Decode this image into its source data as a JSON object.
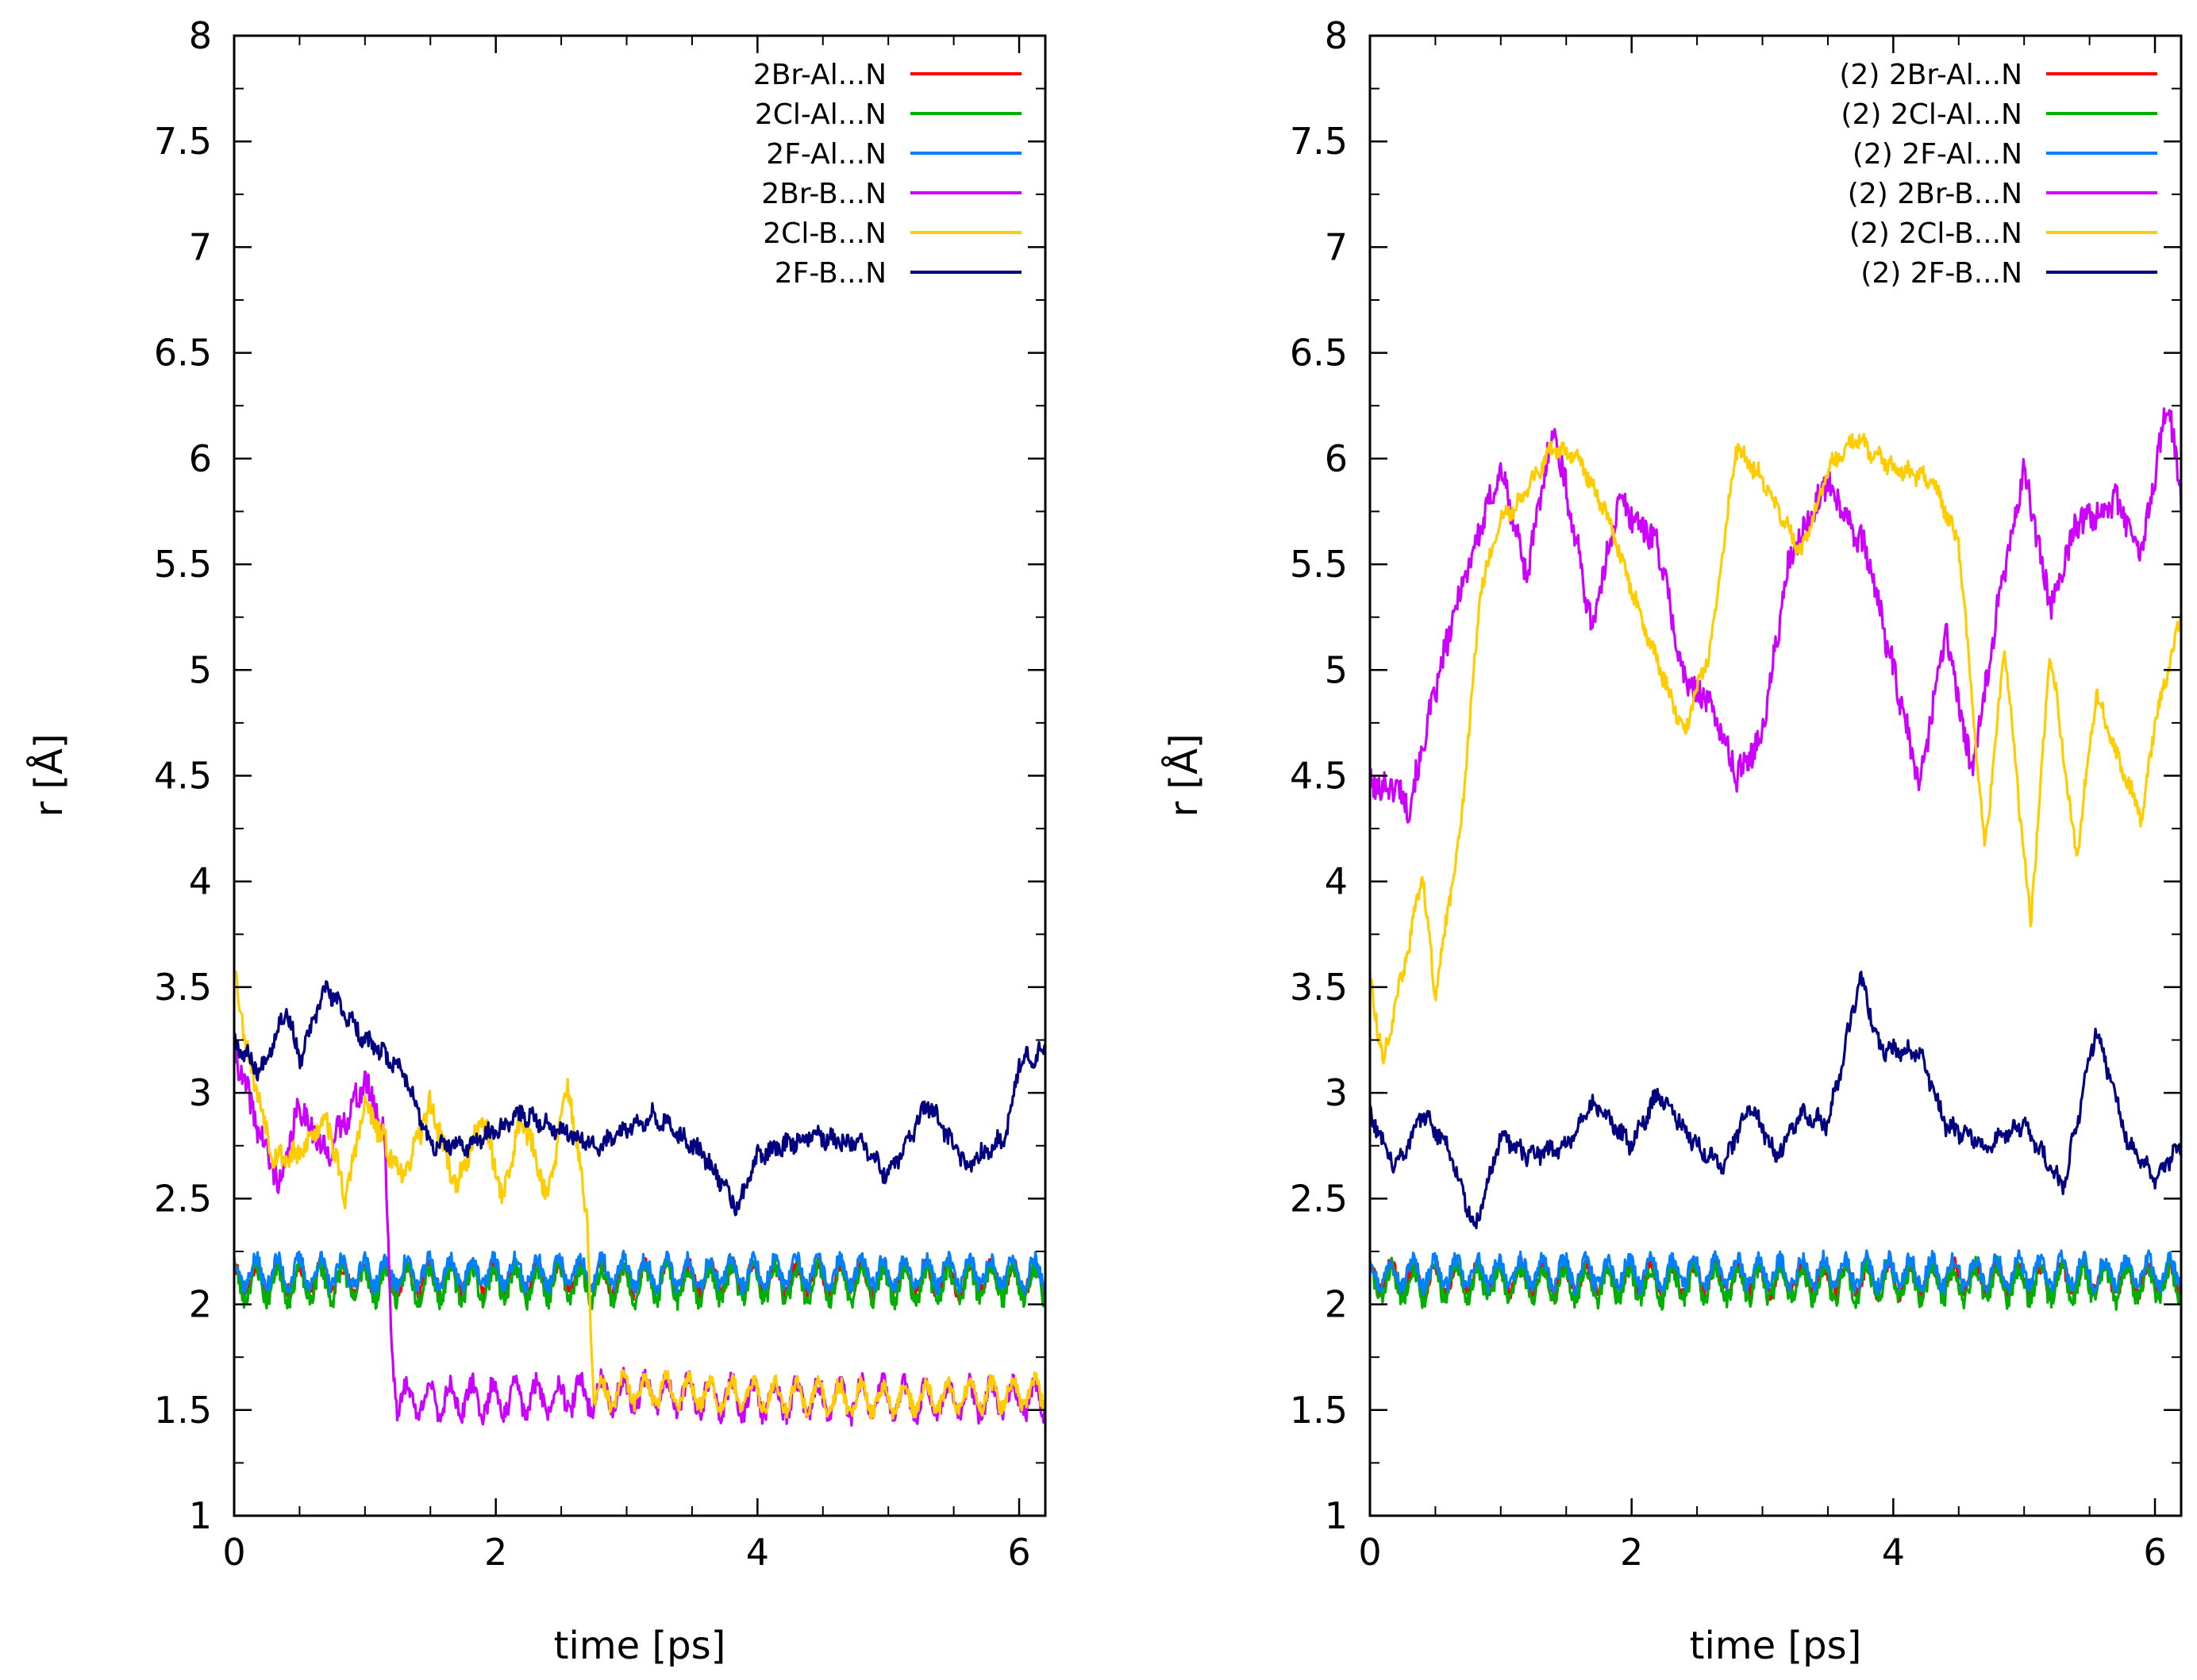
{
  "chart_data": [
    {
      "type": "line",
      "xlabel": "time [ps]",
      "ylabel": "r [Å]",
      "xlim": [
        0,
        6.2
      ],
      "ylim": [
        1,
        8
      ],
      "xticks": [
        "0",
        "2",
        "4",
        "6"
      ],
      "yticks": [
        "1",
        "1.5",
        "2",
        "2.5",
        "3",
        "3.5",
        "4",
        "4.5",
        "5",
        "5.5",
        "6",
        "6.5",
        "7",
        "7.5",
        "8"
      ],
      "legend_position": "top-right",
      "series": [
        {
          "name": "2Br-Al...N",
          "color": "#ff0000",
          "base": [
            [
              0,
              2.12
            ],
            [
              6.2,
              2.12
            ]
          ],
          "noise": 0.05,
          "seed": 11
        },
        {
          "name": "2Cl-Al...N",
          "color": "#00b000",
          "base": [
            [
              0,
              2.1
            ],
            [
              6.2,
              2.1
            ]
          ],
          "noise": 0.06,
          "seed": 23
        },
        {
          "name": "2F-Al...N",
          "color": "#0080ff",
          "base": [
            [
              0,
              2.15
            ],
            [
              6.2,
              2.15
            ]
          ],
          "noise": 0.05,
          "seed": 37
        },
        {
          "name": "2Br-B...N",
          "color": "#cc00ff",
          "base": [
            [
              0,
              3.2
            ],
            [
              0.2,
              2.8
            ],
            [
              0.35,
              2.55
            ],
            [
              0.5,
              2.95
            ],
            [
              0.7,
              2.7
            ],
            [
              1.0,
              3.05
            ],
            [
              1.15,
              2.8
            ],
            [
              1.2,
              1.85
            ],
            [
              1.25,
              1.55
            ],
            [
              2.0,
              1.55
            ],
            [
              3.0,
              1.58
            ],
            [
              4.0,
              1.55
            ],
            [
              6.2,
              1.55
            ]
          ],
          "noise": 0.06,
          "seed": 41
        },
        {
          "name": "2Cl-B...N",
          "color": "#ffcc00",
          "base": [
            [
              0,
              3.6
            ],
            [
              0.1,
              3.2
            ],
            [
              0.3,
              2.7
            ],
            [
              0.5,
              2.7
            ],
            [
              0.7,
              2.9
            ],
            [
              0.85,
              2.5
            ],
            [
              1.0,
              2.95
            ],
            [
              1.2,
              2.7
            ],
            [
              1.3,
              2.6
            ],
            [
              1.5,
              2.95
            ],
            [
              1.7,
              2.55
            ],
            [
              1.9,
              2.9
            ],
            [
              2.05,
              2.5
            ],
            [
              2.2,
              2.9
            ],
            [
              2.4,
              2.5
            ],
            [
              2.55,
              3.05
            ],
            [
              2.7,
              2.4
            ],
            [
              2.75,
              1.55
            ],
            [
              3.0,
              1.6
            ],
            [
              4.0,
              1.57
            ],
            [
              5.0,
              1.55
            ],
            [
              6.2,
              1.58
            ]
          ],
          "noise": 0.05,
          "seed": 53
        },
        {
          "name": "2F-B...N",
          "color": "#000080",
          "base": [
            [
              0,
              3.25
            ],
            [
              0.2,
              3.1
            ],
            [
              0.4,
              3.4
            ],
            [
              0.5,
              3.15
            ],
            [
              0.7,
              3.5
            ],
            [
              1.0,
              3.25
            ],
            [
              1.3,
              3.1
            ],
            [
              1.5,
              2.75
            ],
            [
              1.8,
              2.75
            ],
            [
              2.2,
              2.9
            ],
            [
              2.6,
              2.8
            ],
            [
              2.8,
              2.75
            ],
            [
              3.2,
              2.9
            ],
            [
              3.6,
              2.7
            ],
            [
              3.85,
              2.45
            ],
            [
              4.0,
              2.7
            ],
            [
              4.4,
              2.8
            ],
            [
              4.8,
              2.75
            ],
            [
              5.0,
              2.6
            ],
            [
              5.3,
              2.95
            ],
            [
              5.6,
              2.65
            ],
            [
              5.9,
              2.8
            ],
            [
              6.0,
              3.15
            ],
            [
              6.2,
              3.2
            ]
          ],
          "noise": 0.035,
          "seed": 67
        }
      ]
    },
    {
      "type": "line",
      "xlabel": "time [ps]",
      "ylabel": "r [Å]",
      "xlim": [
        0,
        6.2
      ],
      "ylim": [
        1,
        8
      ],
      "xticks": [
        "0",
        "2",
        "4",
        "6"
      ],
      "yticks": [
        "1",
        "1.5",
        "2",
        "2.5",
        "3",
        "3.5",
        "4",
        "4.5",
        "5",
        "5.5",
        "6",
        "6.5",
        "7",
        "7.5",
        "8"
      ],
      "legend_position": "top-right",
      "series": [
        {
          "name": "(2) 2Br-Al...N",
          "color": "#ff0000",
          "base": [
            [
              0,
              2.12
            ],
            [
              6.2,
              2.12
            ]
          ],
          "noise": 0.05,
          "seed": 71
        },
        {
          "name": "(2) 2Cl-Al...N",
          "color": "#00b000",
          "base": [
            [
              0,
              2.1
            ],
            [
              6.2,
              2.1
            ]
          ],
          "noise": 0.06,
          "seed": 83
        },
        {
          "name": "(2) 2F-Al...N",
          "color": "#0080ff",
          "base": [
            [
              0,
              2.15
            ],
            [
              6.2,
              2.15
            ]
          ],
          "noise": 0.05,
          "seed": 97
        },
        {
          "name": "(2) 2Br-B...N",
          "color": "#cc00ff",
          "base": [
            [
              0,
              4.45
            ],
            [
              0.2,
              4.45
            ],
            [
              0.3,
              4.35
            ],
            [
              0.5,
              4.9
            ],
            [
              0.7,
              5.4
            ],
            [
              1.0,
              5.95
            ],
            [
              1.2,
              5.45
            ],
            [
              1.4,
              6.15
            ],
            [
              1.5,
              5.85
            ],
            [
              1.7,
              5.2
            ],
            [
              1.9,
              5.8
            ],
            [
              2.2,
              5.6
            ],
            [
              2.4,
              4.95
            ],
            [
              2.6,
              4.85
            ],
            [
              2.8,
              4.5
            ],
            [
              3.0,
              4.7
            ],
            [
              3.2,
              5.5
            ],
            [
              3.5,
              5.9
            ],
            [
              3.8,
              5.55
            ],
            [
              4.0,
              5.0
            ],
            [
              4.2,
              4.45
            ],
            [
              4.4,
              5.2
            ],
            [
              4.6,
              4.5
            ],
            [
              4.8,
              5.3
            ],
            [
              5.0,
              5.95
            ],
            [
              5.2,
              5.3
            ],
            [
              5.4,
              5.7
            ],
            [
              5.7,
              5.8
            ],
            [
              5.9,
              5.55
            ],
            [
              6.1,
              6.3
            ],
            [
              6.2,
              5.8
            ]
          ],
          "noise": 0.06,
          "seed": 101
        },
        {
          "name": "(2) 2Cl-B...N",
          "color": "#ffcc00",
          "base": [
            [
              0,
              3.55
            ],
            [
              0.1,
              3.15
            ],
            [
              0.3,
              3.7
            ],
            [
              0.4,
              4.05
            ],
            [
              0.5,
              3.45
            ],
            [
              0.7,
              4.3
            ],
            [
              0.85,
              5.4
            ],
            [
              1.0,
              5.7
            ],
            [
              1.2,
              5.85
            ],
            [
              1.4,
              6.05
            ],
            [
              1.6,
              6.0
            ],
            [
              1.8,
              5.75
            ],
            [
              2.1,
              5.2
            ],
            [
              2.4,
              4.7
            ],
            [
              2.6,
              5.1
            ],
            [
              2.8,
              6.05
            ],
            [
              3.0,
              5.9
            ],
            [
              3.3,
              5.55
            ],
            [
              3.5,
              5.95
            ],
            [
              3.7,
              6.1
            ],
            [
              4.0,
              5.95
            ],
            [
              4.3,
              5.9
            ],
            [
              4.5,
              5.6
            ],
            [
              4.7,
              4.15
            ],
            [
              4.85,
              5.1
            ],
            [
              5.05,
              3.8
            ],
            [
              5.2,
              5.1
            ],
            [
              5.4,
              4.1
            ],
            [
              5.55,
              4.9
            ],
            [
              5.7,
              4.6
            ],
            [
              5.9,
              4.3
            ],
            [
              6.0,
              4.75
            ],
            [
              6.2,
              5.25
            ]
          ],
          "noise": 0.035,
          "seed": 113
        },
        {
          "name": "(2) 2F-B...N",
          "color": "#000080",
          "base": [
            [
              0,
              2.9
            ],
            [
              0.2,
              2.65
            ],
            [
              0.4,
              2.9
            ],
            [
              0.6,
              2.75
            ],
            [
              0.8,
              2.35
            ],
            [
              1.0,
              2.8
            ],
            [
              1.2,
              2.7
            ],
            [
              1.5,
              2.75
            ],
            [
              1.7,
              2.95
            ],
            [
              2.0,
              2.75
            ],
            [
              2.2,
              3.0
            ],
            [
              2.5,
              2.75
            ],
            [
              2.7,
              2.65
            ],
            [
              2.9,
              2.95
            ],
            [
              3.1,
              2.7
            ],
            [
              3.3,
              2.9
            ],
            [
              3.5,
              2.85
            ],
            [
              3.75,
              3.55
            ],
            [
              3.9,
              3.2
            ],
            [
              4.2,
              3.2
            ],
            [
              4.4,
              2.85
            ],
            [
              4.7,
              2.75
            ],
            [
              5.0,
              2.85
            ],
            [
              5.3,
              2.55
            ],
            [
              5.55,
              3.3
            ],
            [
              5.8,
              2.75
            ],
            [
              6.0,
              2.6
            ],
            [
              6.2,
              2.75
            ]
          ],
          "noise": 0.035,
          "seed": 127
        }
      ]
    }
  ]
}
